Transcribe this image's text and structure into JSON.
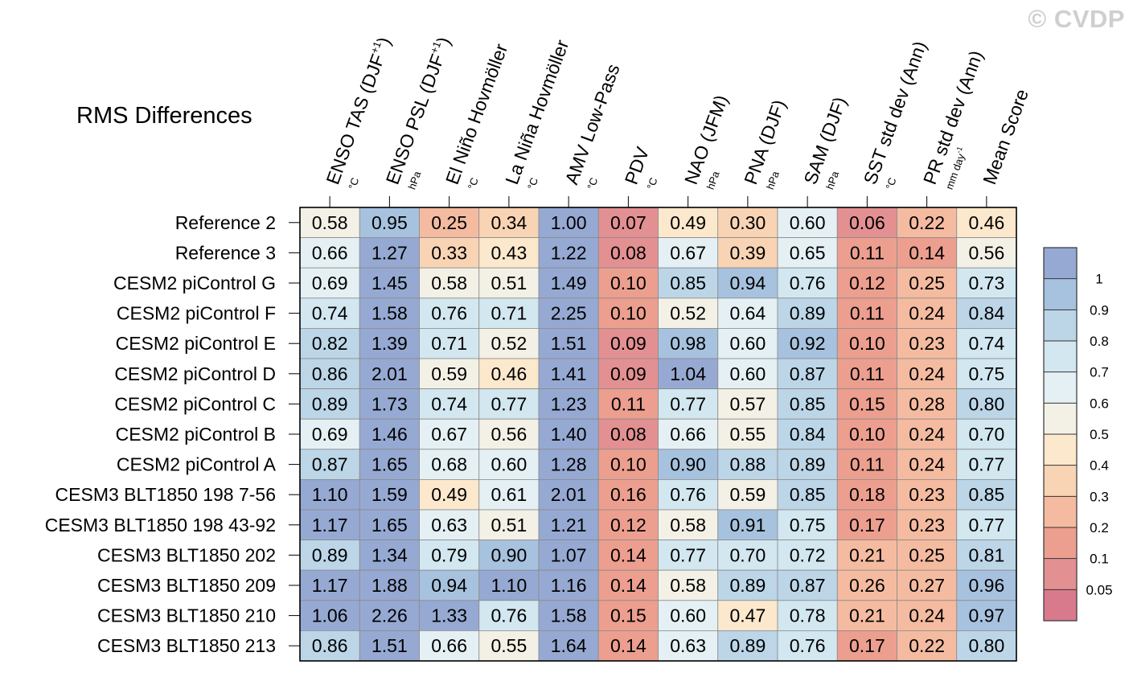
{
  "watermark": "© CVDP",
  "chart_data": {
    "type": "heatmap",
    "title": "RMS Differences",
    "columns": [
      {
        "label": "ENSO TAS (DJF",
        "sup": "+1",
        "close": ")",
        "unit": "°C"
      },
      {
        "label": "ENSO PSL (DJF",
        "sup": "+1",
        "close": ")",
        "unit": "hPa"
      },
      {
        "label": "El Niño Hovmöller",
        "sup": "",
        "close": "",
        "unit": "°C"
      },
      {
        "label": "La Niña Hovmöller",
        "sup": "",
        "close": "",
        "unit": "°C"
      },
      {
        "label": "AMV Low-Pass",
        "sup": "",
        "close": "",
        "unit": "°C"
      },
      {
        "label": "PDV",
        "sup": "",
        "close": "",
        "unit": "°C"
      },
      {
        "label": "NAO (JFM)",
        "sup": "",
        "close": "",
        "unit": "hPa"
      },
      {
        "label": "PNA (DJF)",
        "sup": "",
        "close": "",
        "unit": "hPa"
      },
      {
        "label": "SAM (DJF)",
        "sup": "",
        "close": "",
        "unit": "hPa"
      },
      {
        "label": "SST std dev (Ann)",
        "sup": "",
        "close": "",
        "unit": "°C"
      },
      {
        "label": "PR std dev (Ann)",
        "sup": "",
        "close": "",
        "unit": "mm day",
        "unit_sup": "-1"
      },
      {
        "label": "Mean Score",
        "sup": "",
        "close": "",
        "unit": ""
      }
    ],
    "rows": [
      "Reference 2",
      "Reference 3",
      "CESM2 piControl G",
      "CESM2 piControl F",
      "CESM2 piControl E",
      "CESM2 piControl D",
      "CESM2 piControl C",
      "CESM2 piControl B",
      "CESM2 piControl A",
      "CESM3 BLT1850 198 7-56",
      "CESM3 BLT1850 198 43-92",
      "CESM3 BLT1850 202",
      "CESM3 BLT1850 209",
      "CESM3 BLT1850 210",
      "CESM3 BLT1850 213"
    ],
    "values": [
      [
        "0.58",
        "0.95",
        "0.25",
        "0.34",
        "1.00",
        "0.07",
        "0.49",
        "0.30",
        "0.60",
        "0.06",
        "0.22",
        "0.46"
      ],
      [
        "0.66",
        "1.27",
        "0.33",
        "0.43",
        "1.22",
        "0.08",
        "0.67",
        "0.39",
        "0.65",
        "0.11",
        "0.14",
        "0.56"
      ],
      [
        "0.69",
        "1.45",
        "0.58",
        "0.51",
        "1.49",
        "0.10",
        "0.85",
        "0.94",
        "0.76",
        "0.12",
        "0.25",
        "0.73"
      ],
      [
        "0.74",
        "1.58",
        "0.76",
        "0.71",
        "2.25",
        "0.10",
        "0.52",
        "0.64",
        "0.89",
        "0.11",
        "0.24",
        "0.84"
      ],
      [
        "0.82",
        "1.39",
        "0.71",
        "0.52",
        "1.51",
        "0.09",
        "0.98",
        "0.60",
        "0.92",
        "0.10",
        "0.23",
        "0.74"
      ],
      [
        "0.86",
        "2.01",
        "0.59",
        "0.46",
        "1.41",
        "0.09",
        "1.04",
        "0.60",
        "0.87",
        "0.11",
        "0.24",
        "0.75"
      ],
      [
        "0.89",
        "1.73",
        "0.74",
        "0.77",
        "1.23",
        "0.11",
        "0.77",
        "0.57",
        "0.85",
        "0.15",
        "0.28",
        "0.80"
      ],
      [
        "0.69",
        "1.46",
        "0.67",
        "0.56",
        "1.40",
        "0.08",
        "0.66",
        "0.55",
        "0.84",
        "0.10",
        "0.24",
        "0.70"
      ],
      [
        "0.87",
        "1.65",
        "0.68",
        "0.60",
        "1.28",
        "0.10",
        "0.90",
        "0.88",
        "0.89",
        "0.11",
        "0.24",
        "0.77"
      ],
      [
        "1.10",
        "1.59",
        "0.49",
        "0.61",
        "2.01",
        "0.16",
        "0.76",
        "0.59",
        "0.85",
        "0.18",
        "0.23",
        "0.85"
      ],
      [
        "1.17",
        "1.65",
        "0.63",
        "0.51",
        "1.21",
        "0.12",
        "0.58",
        "0.91",
        "0.75",
        "0.17",
        "0.23",
        "0.77"
      ],
      [
        "0.89",
        "1.34",
        "0.79",
        "0.90",
        "1.07",
        "0.14",
        "0.77",
        "0.70",
        "0.72",
        "0.21",
        "0.25",
        "0.81"
      ],
      [
        "1.17",
        "1.88",
        "0.94",
        "1.10",
        "1.16",
        "0.14",
        "0.58",
        "0.89",
        "0.87",
        "0.26",
        "0.27",
        "0.96"
      ],
      [
        "1.06",
        "2.26",
        "1.33",
        "0.76",
        "1.58",
        "0.15",
        "0.60",
        "0.47",
        "0.78",
        "0.21",
        "0.24",
        "0.97"
      ],
      [
        "0.86",
        "1.51",
        "0.66",
        "0.55",
        "1.64",
        "0.14",
        "0.63",
        "0.89",
        "0.76",
        "0.17",
        "0.22",
        "0.80"
      ]
    ],
    "colorbar": {
      "levels": [
        "0.05",
        "0.1",
        "0.2",
        "0.3",
        "0.4",
        "0.5",
        "0.6",
        "0.7",
        "0.8",
        "0.9",
        "1"
      ],
      "colors": [
        "#d97a8c",
        "#e39092",
        "#ec9f8f",
        "#f4bba0",
        "#f8d4b4",
        "#fce8cc",
        "#f3f1e6",
        "#e4f0f4",
        "#d2e7f0",
        "#bcd6e8",
        "#a7c2de",
        "#96a9d2"
      ]
    }
  }
}
